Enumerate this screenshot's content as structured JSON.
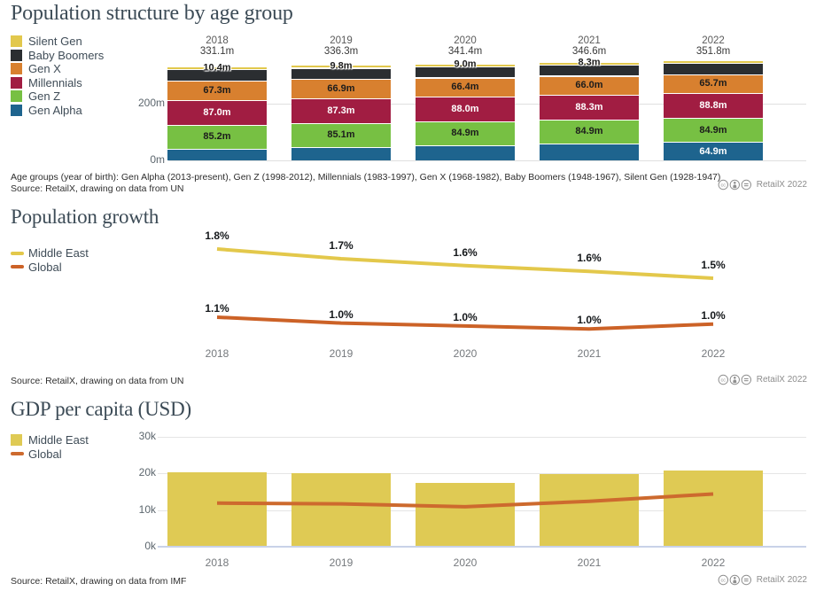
{
  "credit": "RetailX 2022",
  "sections": {
    "population_structure": {
      "title": "Population structure by age group",
      "legend": [
        {
          "label": "Silent Gen",
          "color": "#e2c84d"
        },
        {
          "label": "Baby Boomers",
          "color": "#2b2e31"
        },
        {
          "label": "Gen X",
          "color": "#d8802f"
        },
        {
          "label": "Millennials",
          "color": "#a11d42"
        },
        {
          "label": "Gen Z",
          "color": "#77c043"
        },
        {
          "label": "Gen Alpha",
          "color": "#1e648e"
        }
      ],
      "footnote": "Age groups (year of birth): Gen Alpha (2013-present), Gen Z (1998-2012), Millennials (1983-1997), Gen X (1968-1982), Baby Boomers (1948-1967), Silent Gen (1928-1947)",
      "source": "Source: RetailX, drawing on data from UN",
      "chart_data": {
        "type": "bar",
        "stacked": true,
        "categories": [
          "2018",
          "2019",
          "2020",
          "2021",
          "2022"
        ],
        "total_labels": [
          "331.1m",
          "336.3m",
          "341.4m",
          "346.6m",
          "351.8m"
        ],
        "unit": "millions of people",
        "y_axis": {
          "ticks": [
            {
              "v": 200,
              "label": "200m"
            },
            {
              "v": 0,
              "label": "0m"
            }
          ]
        },
        "series_bottom_to_top": [
          {
            "name": "Gen Alpha",
            "color": "#1e648e",
            "values": [
              41.0,
              47.0,
              53.0,
              59.1,
              64.9
            ],
            "value_labels": [
              "",
              "",
              "",
              "",
              "64.9m"
            ],
            "label_style": "light"
          },
          {
            "name": "Gen Z",
            "color": "#77c043",
            "values": [
              85.2,
              85.1,
              84.9,
              84.9,
              84.9
            ],
            "value_labels": [
              "85.2m",
              "85.1m",
              "84.9m",
              "84.9m",
              "84.9m"
            ],
            "label_style": "dark"
          },
          {
            "name": "Millennials",
            "color": "#a11d42",
            "values": [
              87.0,
              87.3,
              88.0,
              88.3,
              88.8
            ],
            "value_labels": [
              "87.0m",
              "87.3m",
              "88.0m",
              "88.3m",
              "88.8m"
            ],
            "label_style": "light"
          },
          {
            "name": "Gen X",
            "color": "#d8802f",
            "values": [
              67.3,
              66.9,
              66.4,
              66.0,
              65.7
            ],
            "value_labels": [
              "67.3m",
              "66.9m",
              "66.4m",
              "66.0m",
              "65.7m"
            ],
            "label_style": "dark"
          },
          {
            "name": "Baby Boomers",
            "color": "#2b2e31",
            "values": [
              40.2,
              40.2,
              40.1,
              40.0,
              39.9
            ],
            "value_labels": [
              "",
              "",
              "",
              "",
              ""
            ],
            "label_style": "dark"
          },
          {
            "name": "Silent Gen",
            "color": "#e2c84d",
            "values": [
              10.4,
              9.8,
              9.0,
              8.3,
              7.6
            ],
            "value_labels": [
              "10.4m",
              "9.8m",
              "9.0m",
              "8.3m",
              ""
            ],
            "label_style": "dark",
            "overflow_labels": true
          }
        ]
      }
    },
    "population_growth": {
      "title": "Population growth",
      "legend": [
        {
          "label": "Middle East",
          "color": "#e3c84b",
          "swatch": "line"
        },
        {
          "label": "Global",
          "color": "#cc6227",
          "swatch": "line"
        }
      ],
      "source": "Source: RetailX, drawing on data from UN",
      "chart_data": {
        "type": "line",
        "x": [
          "2018",
          "2019",
          "2020",
          "2021",
          "2022"
        ],
        "unit": "percent annual growth",
        "series": [
          {
            "name": "Middle East",
            "color": "#e3c84b",
            "point_labels": [
              "1.8%",
              "1.7%",
              "1.6%",
              "1.6%",
              "1.5%"
            ],
            "values": [
              1.8,
              1.7,
              1.63,
              1.57,
              1.5
            ]
          },
          {
            "name": "Global",
            "color": "#cc6227",
            "point_labels": [
              "1.1%",
              "1.0%",
              "1.0%",
              "1.0%",
              "1.0%"
            ],
            "values": [
              1.1,
              1.04,
              1.01,
              0.98,
              1.03
            ]
          }
        ]
      }
    },
    "gdp_per_capita": {
      "title": "GDP per capita (USD)",
      "legend": [
        {
          "label": "Middle East",
          "color": "#dfca54",
          "swatch": "square"
        },
        {
          "label": "Global",
          "color": "#cd6a2e",
          "swatch": "line"
        }
      ],
      "source": "Source: RetailX, drawing on data from IMF",
      "chart_data": {
        "type": "bar",
        "with_line_overlay": true,
        "x": [
          "2018",
          "2019",
          "2020",
          "2021",
          "2022"
        ],
        "unit": "thousand USD",
        "y_axis": {
          "ticks": [
            {
              "v": 30,
              "label": "30k"
            },
            {
              "v": 20,
              "label": "20k"
            },
            {
              "v": 10,
              "label": "10k"
            },
            {
              "v": 0,
              "label": "0k"
            }
          ]
        },
        "bars": {
          "name": "Middle East",
          "color": "#dfca54",
          "values": [
            20.4,
            20.2,
            17.4,
            19.9,
            20.8
          ]
        },
        "line": {
          "name": "Global",
          "color": "#cd6a2e",
          "values": [
            11.9,
            11.7,
            10.9,
            12.4,
            14.4
          ]
        }
      }
    }
  }
}
